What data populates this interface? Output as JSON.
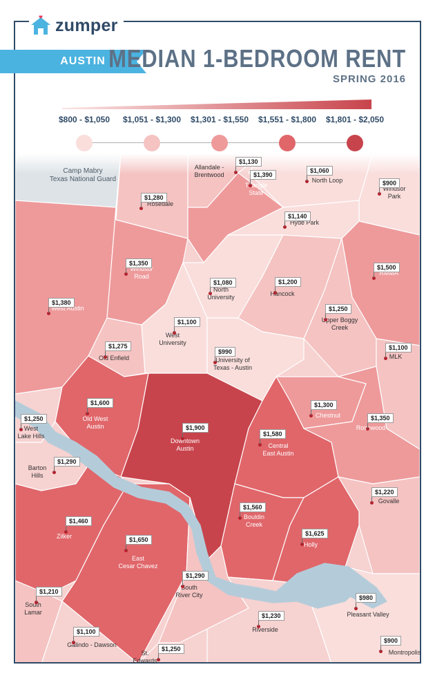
{
  "brand": {
    "name": "zumper",
    "icon": "house-heart-icon"
  },
  "header": {
    "city": "AUSTIN",
    "title": "MEDIAN 1-BEDROOM RENT",
    "subtitle": "SPRING 2016"
  },
  "legend": {
    "ranges": [
      {
        "label": "$800 - $1,050",
        "color": "#f9dedc"
      },
      {
        "label": "$1,051 - $1,300",
        "color": "#f4c3c2"
      },
      {
        "label": "$1,301 - $1,550",
        "color": "#ee9a9b"
      },
      {
        "label": "$1,551 - $1,800",
        "color": "#e0666a"
      },
      {
        "label": "$1,801 - $2,050",
        "color": "#c8444c"
      }
    ]
  },
  "colors": {
    "frame": "#2f4a67",
    "banner": "#4bb3e0",
    "water": "#b4ccda",
    "military": "#dde3e7",
    "pin": "#b51f2b"
  },
  "neighborhoods": [
    {
      "name": "Camp Mabry\nTexas National Guard",
      "price": ""
    },
    {
      "name": "Allandale -\nBrentwood",
      "price": "$1,130"
    },
    {
      "name": "Triangle\nState",
      "price": "$1,390"
    },
    {
      "name": "North Loop",
      "price": "$1,060"
    },
    {
      "name": "Windsor\nPark",
      "price": "$900"
    },
    {
      "name": "Rosedale",
      "price": "$1,280"
    },
    {
      "name": "Hyde Park",
      "price": "$1,140"
    },
    {
      "name": "Windsor\nRoad",
      "price": "$1,350"
    },
    {
      "name": "RMMA",
      "price": "$1,500"
    },
    {
      "name": "North\nUniversity",
      "price": "$1,080"
    },
    {
      "name": "Hancock",
      "price": "$1,200"
    },
    {
      "name": "West Austin",
      "price": "$1,380"
    },
    {
      "name": "Upper Boggy\nCreek",
      "price": "$1,250"
    },
    {
      "name": "West\nUniversity",
      "price": "$1,100"
    },
    {
      "name": "Old Enfield",
      "price": "$1,275"
    },
    {
      "name": "University of\nTexas - Austin",
      "price": "$990"
    },
    {
      "name": "MLK",
      "price": "$1,100"
    },
    {
      "name": "Old West\nAustin",
      "price": "$1,600"
    },
    {
      "name": "West\nLake Hills",
      "price": "$1,250"
    },
    {
      "name": "Downtown\nAustin",
      "price": "$1,900"
    },
    {
      "name": "Chestnut",
      "price": "$1,300"
    },
    {
      "name": "Rosewood",
      "price": "$1,350"
    },
    {
      "name": "Central\nEast Austin",
      "price": "$1,580"
    },
    {
      "name": "Barton\nHills",
      "price": "$1,290"
    },
    {
      "name": "Govalle",
      "price": "$1,220"
    },
    {
      "name": "Zilker",
      "price": "$1,460"
    },
    {
      "name": "East\nCesar Chavez",
      "price": "$1,650"
    },
    {
      "name": "Bouldin\nCreek",
      "price": "$1,560"
    },
    {
      "name": "Holly",
      "price": "$1,625"
    },
    {
      "name": "South\nRiver City",
      "price": "$1,290"
    },
    {
      "name": "South\nLamar",
      "price": "$1,210"
    },
    {
      "name": "Pleasant Valley",
      "price": "$980"
    },
    {
      "name": "Riverside",
      "price": "$1,230"
    },
    {
      "name": "Galindo - Dawson",
      "price": "$1,100"
    },
    {
      "name": "Montropolis",
      "price": "$900"
    },
    {
      "name": "St.\nEdwards",
      "price": "$1,250"
    }
  ]
}
